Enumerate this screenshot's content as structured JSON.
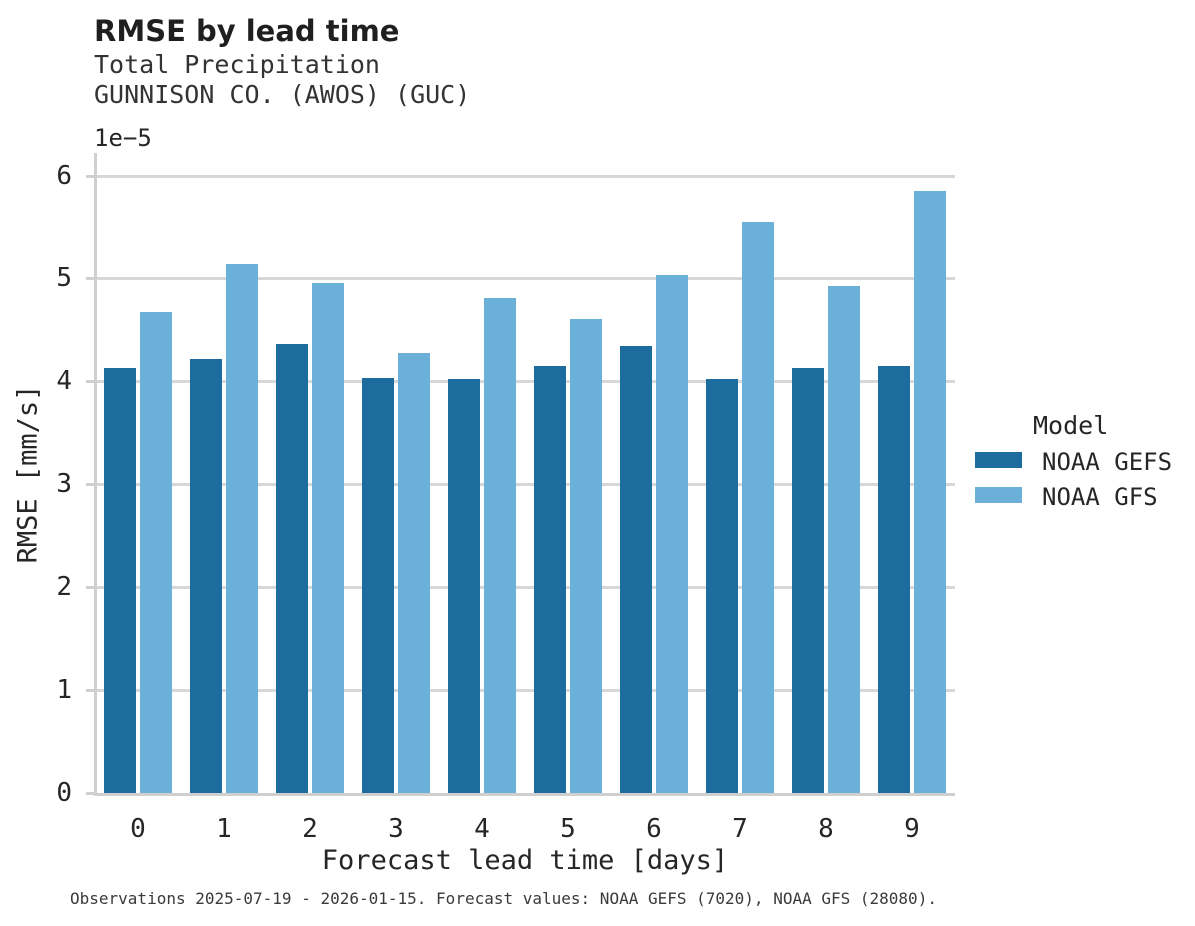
{
  "title": "RMSE by lead time",
  "subtitle_line1": "Total Precipitation",
  "subtitle_line2": "GUNNISON CO. (AWOS) (GUC)",
  "offset_label": "1e−5",
  "footer": "Observations 2025-07-19 - 2026-01-15. Forecast values: NOAA GEFS (7020), NOAA GFS (28080).",
  "colors": {
    "gefs_bar": "#1c6d9d",
    "gfs_bar": "#6bb0d9",
    "gridline": "#d7d7d7",
    "spine": "#cfcfcf",
    "text": "#262626"
  },
  "legend": {
    "title": "Model",
    "entries": [
      {
        "label": "NOAA GEFS",
        "color": "#1c6d9d"
      },
      {
        "label": "NOAA GFS",
        "color": "#6bb0d9"
      }
    ]
  },
  "chart_data": {
    "type": "bar",
    "title": "RMSE by lead time",
    "subtitle": [
      "Total Precipitation",
      "GUNNISON CO. (AWOS) (GUC)"
    ],
    "categories": [
      "0",
      "1",
      "2",
      "3",
      "4",
      "5",
      "6",
      "7",
      "8",
      "9"
    ],
    "series": [
      {
        "name": "NOAA GEFS",
        "color": "#1c6d9d",
        "values": [
          4.13,
          4.22,
          4.36,
          4.03,
          4.02,
          4.15,
          4.34,
          4.02,
          4.13,
          4.15
        ]
      },
      {
        "name": "NOAA GFS",
        "color": "#6bb0d9",
        "values": [
          4.67,
          5.14,
          4.96,
          4.28,
          4.81,
          4.61,
          5.03,
          5.55,
          4.93,
          5.85
        ]
      }
    ],
    "value_unit_scale": "1e-5",
    "value_unit": "mm/s",
    "xlabel": "Forecast lead time [days]",
    "ylabel": "RMSE [mm/s]",
    "ylim": [
      0,
      6.2
    ],
    "yticks": [
      0,
      1,
      2,
      3,
      4,
      5,
      6
    ],
    "grid": "horizontal",
    "legend_title": "Model",
    "legend_position": "right"
  }
}
